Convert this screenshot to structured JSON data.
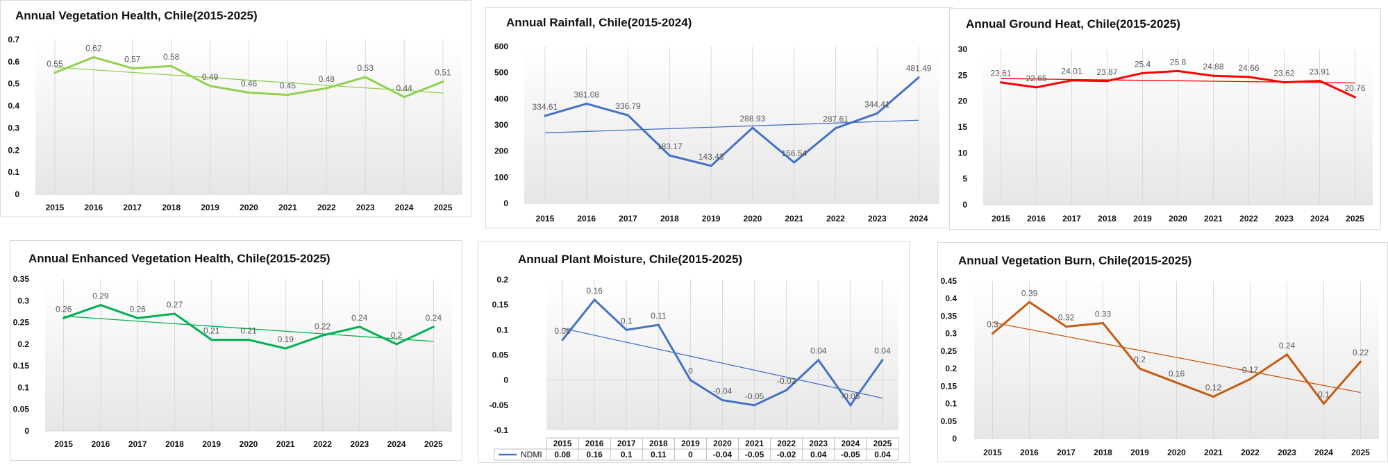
{
  "chart_data": [
    {
      "type": "line",
      "title": "Annual Vegetation Health, Chile(2015-2025)",
      "categories": [
        "2015",
        "2016",
        "2017",
        "2018",
        "2019",
        "2020",
        "2021",
        "2022",
        "2023",
        "2024",
        "2025"
      ],
      "series": [
        {
          "name": "",
          "values": [
            0.55,
            0.62,
            0.57,
            0.58,
            0.49,
            0.46,
            0.45,
            0.48,
            0.53,
            0.44,
            0.51
          ],
          "color": "#92d050"
        }
      ],
      "trendline": true,
      "ylim": [
        0,
        0.7
      ],
      "yticks": [
        "0",
        "0.1",
        "0.2",
        "0.3",
        "0.4",
        "0.5",
        "0.6",
        "0.7"
      ],
      "data_labels": [
        "0.55",
        "0.62",
        "0.57",
        "0.58",
        "0.49",
        "0.46",
        "0.45",
        "0.48",
        "0.53",
        "0.44",
        "0.51"
      ],
      "grid": false
    },
    {
      "type": "line",
      "title": "Annual Rainfall,  Chile(2015-2024)",
      "categories": [
        "2015",
        "2016",
        "2017",
        "2018",
        "2019",
        "2020",
        "2021",
        "2022",
        "2023",
        "2024"
      ],
      "series": [
        {
          "name": "",
          "values": [
            334.61,
            381.08,
            336.79,
            183.17,
            143.43,
            288.93,
            156.54,
            287.61,
            344.41,
            481.49
          ],
          "color": "#4472c4"
        }
      ],
      "trendline": true,
      "ylim": [
        0,
        600
      ],
      "yticks": [
        "0",
        "100",
        "200",
        "300",
        "400",
        "500",
        "600"
      ],
      "data_labels": [
        "334.61",
        "381.08",
        "336.79",
        "183.17",
        "143.43",
        "288.93",
        "156.54",
        "287.61",
        "344.41",
        "481.49"
      ],
      "grid": false
    },
    {
      "type": "line",
      "title": "Annual Ground Heat, Chile(2015-2025)",
      "categories": [
        "2015",
        "2016",
        "2017",
        "2018",
        "2019",
        "2020",
        "2021",
        "2022",
        "2023",
        "2024",
        "2025"
      ],
      "series": [
        {
          "name": "",
          "values": [
            23.61,
            22.65,
            24.01,
            23.87,
            25.4,
            25.8,
            24.88,
            24.66,
            23.62,
            23.91,
            20.76
          ],
          "color": "#ff0000"
        }
      ],
      "trendline": true,
      "ylim": [
        0,
        30
      ],
      "yticks": [
        "0",
        "5",
        "10",
        "15",
        "20",
        "25",
        "30"
      ],
      "data_labels": [
        "23.61",
        "22.65",
        "24.01",
        "23.87",
        "25.4",
        "25.8",
        "24.88",
        "24.66",
        "23.62",
        "23.91",
        "20.76"
      ],
      "grid": false
    },
    {
      "type": "line",
      "title": "Annual Enhanced Vegetation Health, Chile(2015-2025)",
      "categories": [
        "2015",
        "2016",
        "2017",
        "2018",
        "2019",
        "2020",
        "2021",
        "2022",
        "2023",
        "2024",
        "2025"
      ],
      "series": [
        {
          "name": "",
          "values": [
            0.26,
            0.29,
            0.26,
            0.27,
            0.21,
            0.21,
            0.19,
            0.22,
            0.24,
            0.2,
            0.24
          ],
          "color": "#00b050"
        }
      ],
      "trendline": true,
      "ylim": [
        0,
        0.35
      ],
      "yticks": [
        "0",
        "0.05",
        "0.1",
        "0.15",
        "0.2",
        "0.25",
        "0.3",
        "0.35"
      ],
      "data_labels": [
        "0.26",
        "0.29",
        "0.26",
        "0.27",
        "0.21",
        "0.21",
        "0.19",
        "0.22",
        "0.24",
        "0.2",
        "0.24"
      ],
      "grid": false
    },
    {
      "type": "line",
      "title": "Annual Plant Moisture, Chile(2015-2025)",
      "categories": [
        "2015",
        "2016",
        "2017",
        "2018",
        "2019",
        "2020",
        "2021",
        "2022",
        "2023",
        "2024",
        "2025"
      ],
      "series": [
        {
          "name": "NDMI",
          "values": [
            0.08,
            0.16,
            0.1,
            0.11,
            0,
            -0.04,
            -0.05,
            -0.02,
            0.04,
            -0.05,
            0.04
          ],
          "color": "#4472c4"
        }
      ],
      "trendline": true,
      "ylim": [
        -0.1,
        0.2
      ],
      "yticks": [
        "-0.1",
        "-0.05",
        "0",
        "0.05",
        "0.1",
        "0.15",
        "0.2"
      ],
      "data_labels": [
        "0.08",
        "0.16",
        "0.1",
        "0.11",
        "0",
        "-0.04",
        "-0.05",
        "-0.02",
        "0.04",
        "-0.05",
        "0.04"
      ],
      "table_values": [
        "0.08",
        "0.16",
        "0.1",
        "0.11",
        "0",
        "-0.04",
        "-0.05",
        "-0.02",
        "0.04",
        "-0.05",
        "0.04"
      ],
      "data_table": true,
      "grid": false
    },
    {
      "type": "line",
      "title": "Annual Vegetation Burn, Chile(2015-2025)",
      "categories": [
        "2015",
        "2016",
        "2017",
        "2018",
        "2019",
        "2020",
        "2021",
        "2022",
        "2023",
        "2024",
        "2025"
      ],
      "series": [
        {
          "name": "",
          "values": [
            0.3,
            0.39,
            0.32,
            0.33,
            0.2,
            0.16,
            0.12,
            0.17,
            0.24,
            0.1,
            0.22
          ],
          "color": "#c55a11"
        }
      ],
      "trendline": true,
      "ylim": [
        0,
        0.45
      ],
      "yticks": [
        "0",
        "0.05",
        "0.1",
        "0.15",
        "0.2",
        "0.25",
        "0.3",
        "0.35",
        "0.4",
        "0.45"
      ],
      "data_labels": [
        "0.3",
        "0.39",
        "0.32",
        "0.33",
        "0.2",
        "0.16",
        "0.12",
        "0.17",
        "0.24",
        "0.1",
        "0.22"
      ],
      "grid": false
    }
  ]
}
